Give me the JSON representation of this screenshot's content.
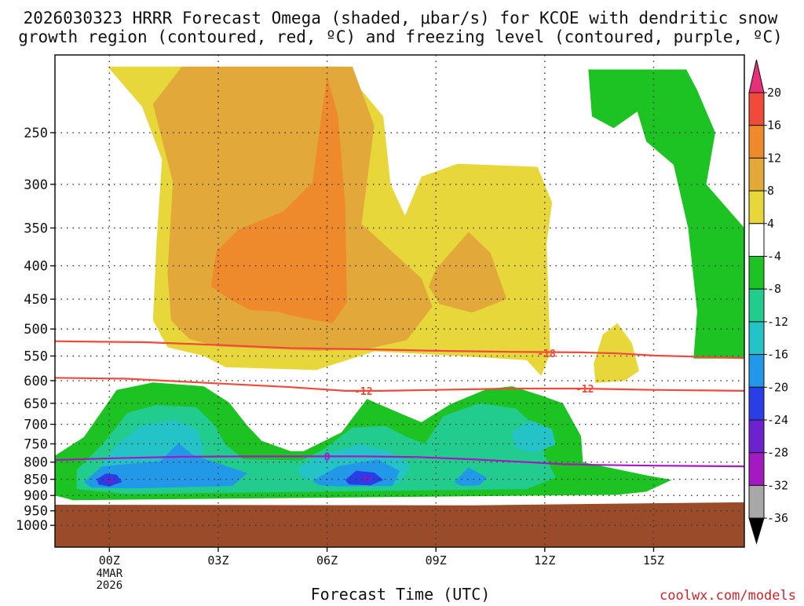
{
  "title_line1": "2026030323 HRRR Forecast Omega (shaded, μbar/s) for KCOE with dendritic snow",
  "title_line2": "growth region (contoured, red, ºC) and freezing level (contoured, purple, ºC)",
  "credit": "coolwx.com/models",
  "chart_data": {
    "type": "heatmap",
    "xlabel": "Forecast Time (UTC)",
    "ylabel": "",
    "x_axis": {
      "range_hours": [
        -1.5,
        17.5
      ],
      "ticks": [
        {
          "hour": 0,
          "label": "00Z",
          "sub": [
            "4MAR",
            "2026"
          ]
        },
        {
          "hour": 3,
          "label": "03Z"
        },
        {
          "hour": 6,
          "label": "06Z"
        },
        {
          "hour": 9,
          "label": "09Z"
        },
        {
          "hour": 12,
          "label": "12Z"
        },
        {
          "hour": 15,
          "label": "15Z"
        }
      ]
    },
    "y_axis": {
      "unit": "hPa",
      "scale": "log",
      "range": [
        190,
        1080
      ],
      "ticks": [
        250,
        300,
        350,
        400,
        450,
        500,
        550,
        600,
        650,
        700,
        750,
        800,
        850,
        900,
        950,
        1000
      ]
    },
    "grid": true,
    "colorbar": {
      "levels": [
        20,
        16,
        12,
        8,
        4,
        -4,
        -8,
        -12,
        -16,
        -20,
        -24,
        -28,
        -32,
        -36
      ],
      "colors": [
        "#e8307a",
        "#f04a3a",
        "#ef8a2c",
        "#e2a93a",
        "#e8d73a",
        "#ffffff",
        "#1dc322",
        "#22cc8e",
        "#24c3c7",
        "#2199e8",
        "#2b3ee6",
        "#6d22cf",
        "#a319c2",
        "#a8a8a8",
        "#000000"
      ]
    },
    "ground_color": "#9a4b2a",
    "omega_regions": [
      {
        "value": 4,
        "color": "#e8d73a",
        "points": [
          [
            -0.05,
            198
          ],
          [
            6.4,
            198
          ],
          [
            7.55,
            236
          ],
          [
            7.75,
            300
          ],
          [
            8.15,
            335
          ],
          [
            8.6,
            292
          ],
          [
            9.6,
            279
          ],
          [
            11.8,
            282
          ],
          [
            12.2,
            320
          ],
          [
            12.05,
            370
          ],
          [
            12.15,
            545
          ],
          [
            11.9,
            590
          ],
          [
            11.5,
            558
          ],
          [
            8.4,
            545
          ],
          [
            7.3,
            541
          ],
          [
            5.7,
            578
          ],
          [
            3.2,
            572
          ],
          [
            2.6,
            550
          ],
          [
            1.6,
            533
          ],
          [
            1.2,
            485
          ],
          [
            1.3,
            368
          ],
          [
            1.45,
            275
          ],
          [
            0.9,
            228
          ]
        ]
      },
      {
        "value": 4,
        "color": "#e8d73a",
        "points": [
          [
            13.6,
            510
          ],
          [
            14.0,
            490
          ],
          [
            14.4,
            525
          ],
          [
            14.6,
            580
          ],
          [
            14.2,
            600
          ],
          [
            13.4,
            605
          ],
          [
            13.35,
            565
          ]
        ]
      },
      {
        "value": 8,
        "color": "#e2a93a",
        "points": [
          [
            2.0,
            198
          ],
          [
            5.1,
            198
          ],
          [
            6.7,
            198
          ],
          [
            7.3,
            244
          ],
          [
            6.95,
            345
          ],
          [
            8.6,
            418
          ],
          [
            8.9,
            462
          ],
          [
            8.2,
            520
          ],
          [
            7.0,
            538
          ],
          [
            5.7,
            540
          ],
          [
            3.0,
            532
          ],
          [
            2.2,
            518
          ],
          [
            1.7,
            485
          ],
          [
            1.6,
            410
          ],
          [
            1.75,
            298
          ],
          [
            1.2,
            226
          ]
        ]
      },
      {
        "value": 8,
        "color": "#e2a93a",
        "points": [
          [
            9.0,
            405
          ],
          [
            9.9,
            355
          ],
          [
            10.5,
            382
          ],
          [
            10.95,
            450
          ],
          [
            10.0,
            472
          ],
          [
            9.1,
            458
          ],
          [
            8.8,
            430
          ]
        ]
      },
      {
        "value": 12,
        "color": "#ef8a2c",
        "points": [
          [
            6.0,
            205
          ],
          [
            6.3,
            235
          ],
          [
            6.5,
            322
          ],
          [
            6.55,
            455
          ],
          [
            6.15,
            490
          ],
          [
            5.25,
            480
          ],
          [
            4.6,
            470
          ],
          [
            3.9,
            468
          ],
          [
            3.3,
            450
          ],
          [
            2.8,
            430
          ],
          [
            2.95,
            380
          ],
          [
            3.55,
            352
          ],
          [
            4.8,
            330
          ],
          [
            5.6,
            298
          ],
          [
            5.8,
            245
          ]
        ]
      }
    ],
    "negative_regions": [
      {
        "value": -4,
        "color": "#1dc322",
        "points": [
          [
            -1.5,
            782
          ],
          [
            -0.7,
            732
          ],
          [
            0.2,
            620
          ],
          [
            1.2,
            604
          ],
          [
            2.6,
            612
          ],
          [
            3.3,
            648
          ],
          [
            3.8,
            703
          ],
          [
            4.2,
            742
          ],
          [
            5.0,
            770
          ],
          [
            5.35,
            770
          ],
          [
            6.4,
            720
          ],
          [
            7.1,
            640
          ],
          [
            8.0,
            673
          ],
          [
            8.6,
            695
          ],
          [
            9.4,
            652
          ],
          [
            10.4,
            618
          ],
          [
            11.1,
            612
          ],
          [
            11.9,
            632
          ],
          [
            12.5,
            650
          ],
          [
            13.0,
            730
          ],
          [
            13.05,
            800
          ],
          [
            14.8,
            838
          ],
          [
            15.5,
            852
          ],
          [
            14.8,
            888
          ],
          [
            14.0,
            898
          ],
          [
            -1.0,
            915
          ],
          [
            -1.5,
            900
          ]
        ]
      },
      {
        "value": -4,
        "color": "#1dc322",
        "points": [
          [
            13.2,
            200
          ],
          [
            15.9,
            200
          ],
          [
            16.2,
            215
          ],
          [
            16.7,
            250
          ],
          [
            16.45,
            300
          ],
          [
            17.5,
            350
          ],
          [
            17.5,
            555
          ],
          [
            16.1,
            555
          ],
          [
            16.2,
            470
          ],
          [
            15.95,
            350
          ],
          [
            15.55,
            280
          ],
          [
            14.8,
            258
          ],
          [
            14.55,
            232
          ],
          [
            13.9,
            246
          ],
          [
            13.3,
            236
          ]
        ]
      },
      {
        "value": -8,
        "color": "#22cc8e",
        "points": [
          [
            -0.9,
            822
          ],
          [
            -0.2,
            752
          ],
          [
            0.5,
            672
          ],
          [
            1.3,
            654
          ],
          [
            2.4,
            659
          ],
          [
            2.9,
            702
          ],
          [
            3.2,
            752
          ],
          [
            3.7,
            792
          ],
          [
            5.3,
            795
          ],
          [
            5.9,
            765
          ],
          [
            6.7,
            708
          ],
          [
            7.6,
            704
          ],
          [
            8.2,
            732
          ],
          [
            8.7,
            750
          ],
          [
            9.2,
            680
          ],
          [
            10.2,
            650
          ],
          [
            11.2,
            662
          ],
          [
            11.8,
            710
          ],
          [
            12.0,
            782
          ],
          [
            12.3,
            845
          ],
          [
            11.5,
            880
          ],
          [
            0.5,
            895
          ],
          [
            -0.9,
            880
          ]
        ]
      },
      {
        "value": -12,
        "color": "#24c3c7",
        "points": [
          [
            -0.3,
            822
          ],
          [
            0.2,
            752
          ],
          [
            0.9,
            702
          ],
          [
            1.8,
            690
          ],
          [
            2.4,
            712
          ],
          [
            2.6,
            760
          ],
          [
            2.4,
            815
          ],
          [
            1.3,
            850
          ],
          [
            0.0,
            860
          ]
        ]
      },
      {
        "value": -12,
        "color": "#24c3c7",
        "points": [
          [
            5.2,
            815
          ],
          [
            5.8,
            782
          ],
          [
            6.9,
            752
          ],
          [
            7.7,
            770
          ],
          [
            8.3,
            810
          ],
          [
            8.0,
            862
          ],
          [
            6.2,
            868
          ],
          [
            5.3,
            845
          ]
        ]
      },
      {
        "value": -12,
        "color": "#24c3c7",
        "points": [
          [
            11.1,
            720
          ],
          [
            11.6,
            690
          ],
          [
            12.2,
            712
          ],
          [
            12.3,
            752
          ],
          [
            11.7,
            775
          ],
          [
            11.2,
            762
          ]
        ]
      },
      {
        "value": -16,
        "color": "#2199e8",
        "points": [
          [
            -0.7,
            858
          ],
          [
            -0.2,
            812
          ],
          [
            0.5,
            805
          ],
          [
            1.4,
            798
          ],
          [
            1.9,
            748
          ],
          [
            2.3,
            780
          ],
          [
            3.2,
            810
          ],
          [
            3.8,
            832
          ],
          [
            3.4,
            870
          ],
          [
            0.6,
            878
          ],
          [
            -0.5,
            875
          ]
        ]
      },
      {
        "value": -16,
        "color": "#2199e8",
        "points": [
          [
            5.6,
            855
          ],
          [
            6.3,
            812
          ],
          [
            7.4,
            792
          ],
          [
            8.0,
            825
          ],
          [
            7.8,
            870
          ],
          [
            6.4,
            872
          ],
          [
            5.8,
            868
          ]
        ]
      },
      {
        "value": -16,
        "color": "#2199e8",
        "points": [
          [
            9.5,
            858
          ],
          [
            9.9,
            815
          ],
          [
            10.4,
            845
          ],
          [
            10.2,
            868
          ],
          [
            9.7,
            870
          ]
        ]
      },
      {
        "value": -20,
        "color": "#2b3ee6",
        "points": [
          [
            -0.35,
            850
          ],
          [
            -0.1,
            833
          ],
          [
            0.2,
            836
          ],
          [
            0.35,
            858
          ],
          [
            0.0,
            872
          ],
          [
            -0.3,
            866
          ]
        ]
      },
      {
        "value": -20,
        "color": "#2b3ee6",
        "points": [
          [
            6.5,
            852
          ],
          [
            6.8,
            825
          ],
          [
            7.3,
            830
          ],
          [
            7.55,
            852
          ],
          [
            7.2,
            868
          ],
          [
            6.6,
            866
          ]
        ]
      },
      {
        "value": -24,
        "color": "#6d22cf",
        "points": [
          [
            -0.1,
            852
          ],
          [
            0.05,
            845
          ],
          [
            0.15,
            856
          ],
          [
            0.0,
            862
          ]
        ]
      },
      {
        "value": -24,
        "color": "#6d22cf",
        "points": [
          [
            6.95,
            848
          ],
          [
            7.1,
            840
          ],
          [
            7.25,
            852
          ],
          [
            7.05,
            858
          ]
        ]
      }
    ],
    "isotherms": [
      {
        "name": "-18",
        "color": "#f04a3a",
        "label_at": [
          12.05,
          545
        ],
        "points": [
          [
            -1.5,
            522
          ],
          [
            1.0,
            524
          ],
          [
            3.0,
            529
          ],
          [
            5.0,
            535
          ],
          [
            7.0,
            537
          ],
          [
            9.0,
            540
          ],
          [
            11.0,
            542
          ],
          [
            13.0,
            543
          ],
          [
            14.0,
            545
          ],
          [
            15.0,
            549
          ],
          [
            16.0,
            551
          ],
          [
            17.5,
            554
          ]
        ]
      },
      {
        "name": "-12",
        "color": "#f04a3a",
        "label_at": [
          7.0,
          622
        ],
        "points": [
          [
            -1.5,
            594
          ],
          [
            0.5,
            596
          ],
          [
            2.5,
            604
          ],
          [
            5.0,
            614
          ],
          [
            6.5,
            622
          ],
          [
            7.5,
            622
          ],
          [
            9.0,
            620
          ],
          [
            11.0,
            617
          ],
          [
            13.0,
            617
          ],
          [
            15.0,
            620
          ],
          [
            17.5,
            622
          ]
        ]
      },
      {
        "name": "-12",
        "color": "#f04a3a",
        "label_at": [
          13.1,
          617
        ],
        "points": []
      },
      {
        "name": "0",
        "color": "#a319c2",
        "label_at": [
          6.0,
          784
        ],
        "points": [
          [
            -1.5,
            794
          ],
          [
            0.5,
            788
          ],
          [
            2.0,
            785
          ],
          [
            4.0,
            784
          ],
          [
            5.5,
            784
          ],
          [
            7.0,
            784
          ],
          [
            8.5,
            786
          ],
          [
            10.0,
            792
          ],
          [
            11.5,
            800
          ],
          [
            12.5,
            806
          ],
          [
            13.5,
            808
          ],
          [
            15.0,
            810
          ],
          [
            17.5,
            812
          ]
        ]
      }
    ],
    "ground": {
      "top_hpa": [
        [
          -1.5,
          930
        ],
        [
          10.0,
          932
        ],
        [
          15.0,
          925
        ],
        [
          17.5,
          922
        ]
      ]
    }
  }
}
